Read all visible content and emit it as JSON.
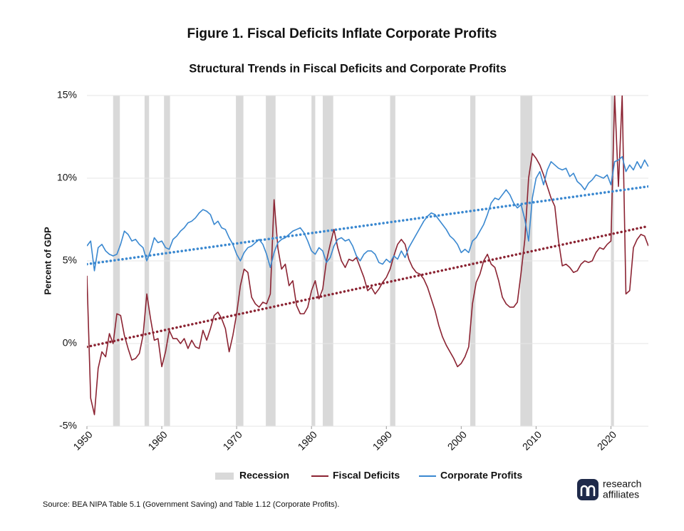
{
  "chart_data": {
    "type": "line",
    "title": "Figure 1. Fiscal Deficits Inflate Corporate Profits",
    "subtitle": "Structural Trends in Fiscal Deficits and Corporate Profits",
    "y_label": "Percent of GDP",
    "source": "Source: BEA NIPA Table 5.1 (Government Saving) and Table 1.12 (Corporate Profits).",
    "logo": [
      "research",
      "affiliates"
    ],
    "xlim": [
      1950,
      2025
    ],
    "ylim": [
      -5,
      15
    ],
    "xticks": [
      1950,
      1960,
      1970,
      1980,
      1990,
      2000,
      2010,
      2020
    ],
    "yticks": [
      {
        "value": -5,
        "label": "-5%"
      },
      {
        "value": 0,
        "label": "0%"
      },
      {
        "value": 5,
        "label": "5%"
      },
      {
        "value": 10,
        "label": "10%"
      },
      {
        "value": 15,
        "label": "15%"
      }
    ],
    "grid": true,
    "x": [
      1950,
      1950.5,
      1951,
      1951.5,
      1952,
      1952.5,
      1953,
      1953.5,
      1954,
      1954.5,
      1955,
      1955.5,
      1956,
      1956.5,
      1957,
      1957.5,
      1958,
      1958.5,
      1959,
      1959.5,
      1960,
      1960.5,
      1961,
      1961.5,
      1962,
      1962.5,
      1963,
      1963.5,
      1964,
      1964.5,
      1965,
      1965.5,
      1966,
      1966.5,
      1967,
      1967.5,
      1968,
      1968.5,
      1969,
      1969.5,
      1970,
      1970.5,
      1971,
      1971.5,
      1972,
      1972.5,
      1973,
      1973.5,
      1974,
      1974.5,
      1975,
      1975.5,
      1976,
      1976.5,
      1977,
      1977.5,
      1978,
      1978.5,
      1979,
      1979.5,
      1980,
      1980.5,
      1981,
      1981.5,
      1982,
      1982.5,
      1983,
      1983.5,
      1984,
      1984.5,
      1985,
      1985.5,
      1986,
      1986.5,
      1987,
      1987.5,
      1988,
      1988.5,
      1989,
      1989.5,
      1990,
      1990.5,
      1991,
      1991.5,
      1992,
      1992.5,
      1993,
      1993.5,
      1994,
      1994.5,
      1995,
      1995.5,
      1996,
      1996.5,
      1997,
      1997.5,
      1998,
      1998.5,
      1999,
      1999.5,
      2000,
      2000.5,
      2001,
      2001.5,
      2002,
      2002.5,
      2003,
      2003.5,
      2004,
      2004.5,
      2005,
      2005.5,
      2006,
      2006.5,
      2007,
      2007.5,
      2008,
      2008.5,
      2009,
      2009.5,
      2010,
      2010.5,
      2011,
      2011.5,
      2012,
      2012.5,
      2013,
      2013.5,
      2014,
      2014.5,
      2015,
      2015.5,
      2016,
      2016.5,
      2017,
      2017.5,
      2018,
      2018.5,
      2019,
      2019.5,
      2020,
      2020.5,
      2021,
      2021.5,
      2022,
      2022.5,
      2023,
      2023.5,
      2024,
      2024.5,
      2025
    ],
    "recessions": {
      "name": "Recession",
      "color": "#d9d9d9",
      "ranges": [
        [
          1953.5,
          1954.4
        ],
        [
          1957.7,
          1958.3
        ],
        [
          1960.3,
          1961.1
        ],
        [
          1969.9,
          1970.9
        ],
        [
          1973.9,
          1975.2
        ],
        [
          1980.0,
          1980.5
        ],
        [
          1981.5,
          1982.9
        ],
        [
          1990.5,
          1991.2
        ],
        [
          2001.2,
          2001.9
        ],
        [
          2007.9,
          2009.5
        ],
        [
          2020.0,
          2020.4
        ]
      ]
    },
    "series": [
      {
        "name": "Fiscal Deficits",
        "color": "#8b2332",
        "values": [
          4.1,
          -3.3,
          -4.3,
          -1.5,
          -0.5,
          -0.8,
          0.6,
          0,
          1.8,
          1.7,
          0.5,
          -0.3,
          -1.0,
          -0.9,
          -0.6,
          0.5,
          3.0,
          1.5,
          0.2,
          0.3,
          -1.4,
          -0.5,
          0.8,
          0.3,
          0.3,
          0,
          0.3,
          -0.3,
          0.2,
          -0.2,
          -0.3,
          0.8,
          0.2,
          0.9,
          1.7,
          1.9,
          1.5,
          0.9,
          -0.5,
          0.5,
          1.8,
          3.5,
          4.5,
          4.3,
          2.8,
          2.4,
          2.2,
          2.5,
          2.4,
          3.0,
          8.7,
          5.8,
          4.5,
          4.8,
          3.5,
          3.8,
          2.3,
          1.8,
          1.8,
          2.2,
          3.2,
          3.8,
          2.7,
          3.3,
          5.0,
          6.0,
          6.9,
          5.8,
          5.0,
          4.6,
          5.1,
          5.0,
          5.2,
          4.6,
          4.0,
          3.2,
          3.4,
          3.0,
          3.3,
          3.7,
          4.0,
          4.5,
          5.3,
          6.0,
          6.3,
          6.0,
          5.1,
          4.6,
          4.3,
          4.2,
          3.9,
          3.4,
          2.7,
          2.0,
          1.1,
          0.4,
          -0.1,
          -0.5,
          -0.9,
          -1.4,
          -1.2,
          -0.8,
          -0.2,
          2.4,
          3.7,
          4.2,
          5.0,
          5.4,
          4.8,
          4.6,
          3.8,
          2.8,
          2.4,
          2.2,
          2.2,
          2.5,
          4.3,
          6.3,
          10.0,
          11.5,
          11.2,
          10.8,
          10.2,
          9.5,
          8.8,
          8.3,
          6.2,
          4.7,
          4.8,
          4.6,
          4.3,
          4.4,
          4.8,
          5.0,
          4.9,
          5.0,
          5.5,
          5.8,
          5.7,
          6.0,
          6.2,
          15,
          9.5,
          15,
          3.0,
          3.2,
          5.8,
          6.3,
          6.6,
          6.5,
          5.9
        ]
      },
      {
        "name": "Corporate Profits",
        "color": "#3a88d0",
        "values": [
          5.9,
          6.2,
          4.4,
          5.8,
          6.0,
          5.6,
          5.4,
          5.3,
          5.4,
          6.0,
          6.8,
          6.6,
          6.2,
          6.3,
          6.0,
          5.8,
          5.0,
          5.6,
          6.4,
          6.1,
          6.2,
          5.8,
          5.7,
          6.3,
          6.5,
          6.8,
          7.0,
          7.3,
          7.4,
          7.6,
          7.9,
          8.1,
          8.0,
          7.8,
          7.2,
          7.4,
          7.0,
          6.9,
          6.4,
          6.0,
          5.4,
          5.0,
          5.5,
          5.8,
          5.9,
          6.1,
          6.3,
          6.0,
          5.4,
          4.6,
          5.5,
          6.1,
          6.3,
          6.4,
          6.6,
          6.8,
          6.9,
          7.0,
          6.7,
          6.2,
          5.6,
          5.4,
          5.8,
          5.6,
          4.9,
          5.2,
          5.9,
          6.3,
          6.4,
          6.2,
          6.3,
          5.9,
          5.3,
          5.0,
          5.4,
          5.6,
          5.6,
          5.4,
          4.9,
          4.8,
          5.1,
          4.9,
          5.3,
          5.1,
          5.6,
          5.2,
          5.8,
          6.2,
          6.6,
          7.0,
          7.4,
          7.7,
          7.9,
          7.8,
          7.5,
          7.2,
          6.9,
          6.5,
          6.3,
          6.0,
          5.5,
          5.7,
          5.5,
          6.2,
          6.4,
          6.8,
          7.2,
          7.8,
          8.5,
          8.8,
          8.7,
          9.0,
          9.3,
          9.0,
          8.5,
          8.2,
          8.4,
          7.5,
          6.2,
          8.8,
          10.0,
          10.4,
          9.6,
          10.5,
          11.0,
          10.8,
          10.6,
          10.5,
          10.6,
          10.1,
          10.3,
          9.8,
          9.6,
          9.3,
          9.7,
          9.9,
          10.2,
          10.1,
          10.0,
          10.2,
          9.6,
          11.0,
          11.1,
          11.3,
          10.4,
          10.8,
          10.5,
          11.0,
          10.6,
          11.1,
          10.7
        ]
      }
    ],
    "trends": [
      {
        "color": "#8b2332",
        "x": [
          1950,
          2025
        ],
        "values": [
          -0.2,
          7.1
        ]
      },
      {
        "color": "#3a88d0",
        "x": [
          1950,
          2025
        ],
        "values": [
          4.8,
          9.5
        ]
      }
    ]
  }
}
